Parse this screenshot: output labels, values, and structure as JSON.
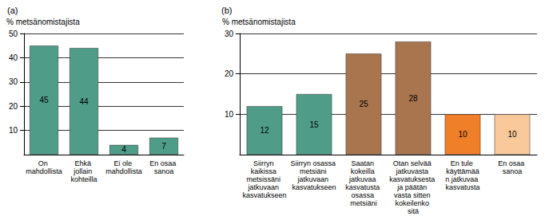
{
  "chart_data": [
    {
      "type": "bar",
      "title": "(a)",
      "ylabel": "% metsänomistajista",
      "categories": [
        "On mahdollista",
        "Ehkä jollain kohteilla",
        "Ei ole mahdollista",
        "En osaa sanoa"
      ],
      "values": [
        45,
        44,
        4,
        7
      ],
      "color": "#4f9c88",
      "ylim": [
        0,
        50
      ],
      "yticks": [
        10,
        20,
        30,
        40,
        50
      ],
      "grid": true,
      "data_labels": true
    },
    {
      "type": "bar",
      "title": "(b)",
      "ylabel": "% metsänomistajista",
      "categories": [
        "Siirryn kaikissa metsissäni jatkuvaan kasvatukseen",
        "Siirryn osassa metsiäni jatkuvaan kasvatukseen",
        "Saatan kokeilla jatkuvaa kasvatusta osassa metsiäni",
        "Otan selvää jatkuvasta kasvatuksesta ja päätän vasta sitten kokeilenko sitä",
        "En tule käyttämään jatkuvaa kasvatusta",
        "En osaa sanoa"
      ],
      "values": [
        12,
        15,
        25,
        28,
        10,
        10
      ],
      "colors": [
        "#4f9c88",
        "#4f9c88",
        "#a8754f",
        "#a8754f",
        "#f07f2a",
        "#f9c89b"
      ],
      "ylim": [
        0,
        30
      ],
      "yticks": [
        10,
        20,
        30
      ],
      "grid": true,
      "data_labels": true
    }
  ]
}
